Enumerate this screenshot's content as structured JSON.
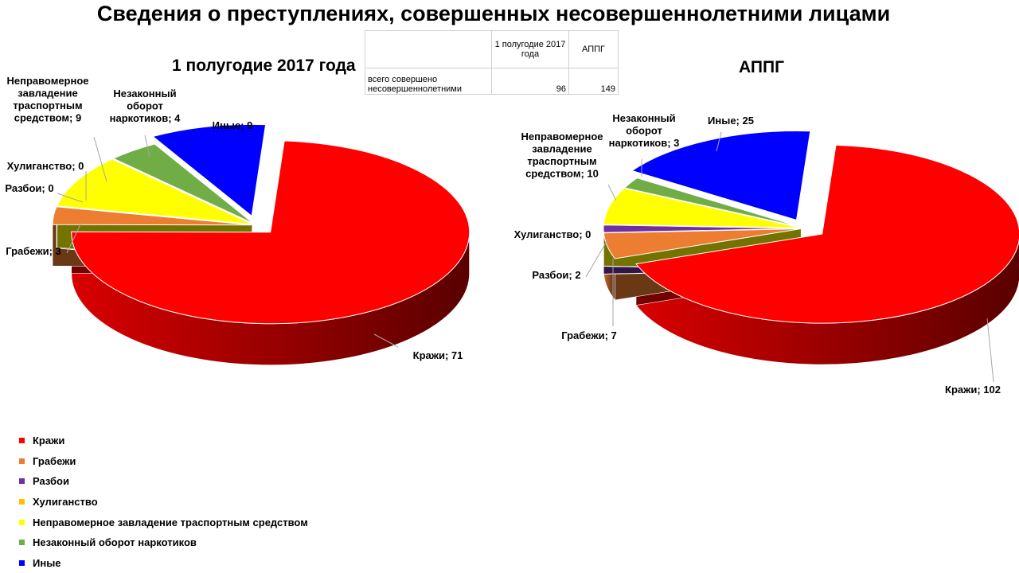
{
  "title": "Сведения о преступлениях, совершенных несовершеннолетними лицами",
  "summary_table": {
    "headers": [
      "",
      "1 полугодие 2017 года",
      "АППГ"
    ],
    "row": {
      "label": "всего совершено несовершеннолетними",
      "values": [
        "96",
        "149"
      ]
    }
  },
  "chart_data": [
    {
      "type": "pie",
      "title": "1 полугодие 2017 года",
      "labels": [
        "Кражи",
        "Грабежи",
        "Разбои",
        "Хулиганство",
        "Неправомерное завладение траспортным средством",
        "Незаконный оборот наркотиков",
        "Иные"
      ],
      "values": [
        71,
        3,
        0,
        0,
        9,
        4,
        9
      ],
      "slice_labels": [
        "Кражи; 71",
        "Грабежи; 3",
        "Разбои; 0",
        "Хулиганство; 0",
        "Неправомерное завладение траспортным средством; 9",
        "Незаконный оборот наркотиков; 4",
        "Иные; 9"
      ],
      "exploded": [
        "Кражи",
        "Иные"
      ]
    },
    {
      "type": "pie",
      "title": "АППГ",
      "labels": [
        "Кражи",
        "Грабежи",
        "Разбои",
        "Хулиганство",
        "Неправомерное завладение траспортным средством",
        "Незаконный оборот наркотиков",
        "Иные"
      ],
      "values": [
        102,
        7,
        2,
        0,
        10,
        3,
        25
      ],
      "slice_labels": [
        "Кражи; 102",
        "Грабежи; 7",
        "Разбои; 2",
        "Хулиганство; 0",
        "Неправомерное завладение траспортным средством; 10",
        "Незаконный оборот наркотиков; 3",
        "Иные; 25"
      ],
      "exploded": [
        "Кражи",
        "Иные"
      ]
    }
  ],
  "legend": {
    "placement": "bottom-left",
    "items": [
      {
        "label": "Кражи",
        "color": "#ff0000"
      },
      {
        "label": "Грабежи",
        "color": "#ed7d31"
      },
      {
        "label": "Разбои",
        "color": "#7030a0"
      },
      {
        "label": "Хулиганство",
        "color": "#ffc000"
      },
      {
        "label": "Неправомерное завладение траспортным средством",
        "color": "#ffff00"
      },
      {
        "label": "Незаконный оборот наркотиков",
        "color": "#70ad47"
      },
      {
        "label": "Иные",
        "color": "#0000ff"
      }
    ]
  }
}
